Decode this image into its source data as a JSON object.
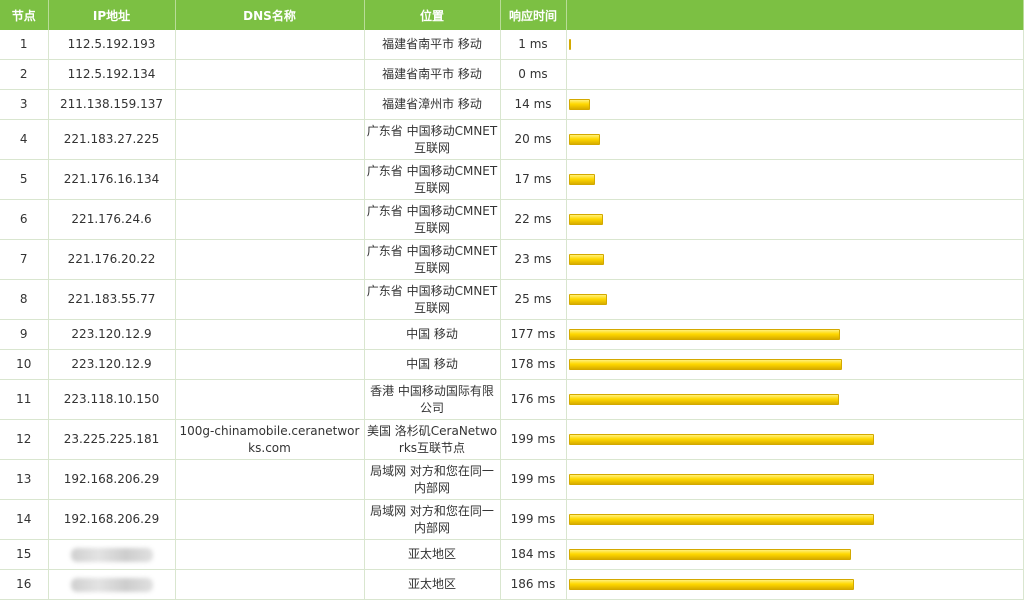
{
  "headers": [
    "节点",
    "IP地址",
    "DNS名称",
    "位置",
    "响应时间",
    ""
  ],
  "hops": [
    {
      "node": "1",
      "ip": "112.5.192.193",
      "dns": "",
      "location": "福建省南平市 移动",
      "time": "1 ms",
      "ms": 1
    },
    {
      "node": "2",
      "ip": "112.5.192.134",
      "dns": "",
      "location": "福建省南平市 移动",
      "time": "0 ms",
      "ms": 0
    },
    {
      "node": "3",
      "ip": "211.138.159.137",
      "dns": "",
      "location": "福建省漳州市 移动",
      "time": "14 ms",
      "ms": 14
    },
    {
      "node": "4",
      "ip": "221.183.27.225",
      "dns": "",
      "location": "广东省 中国移动CMNET互联网",
      "time": "20 ms",
      "ms": 20
    },
    {
      "node": "5",
      "ip": "221.176.16.134",
      "dns": "",
      "location": "广东省 中国移动CMNET互联网",
      "time": "17 ms",
      "ms": 17
    },
    {
      "node": "6",
      "ip": "221.176.24.6",
      "dns": "",
      "location": "广东省 中国移动CMNET互联网",
      "time": "22 ms",
      "ms": 22
    },
    {
      "node": "7",
      "ip": "221.176.20.22",
      "dns": "",
      "location": "广东省 中国移动CMNET互联网",
      "time": "23 ms",
      "ms": 23
    },
    {
      "node": "8",
      "ip": "221.183.55.77",
      "dns": "",
      "location": "广东省 中国移动CMNET互联网",
      "time": "25 ms",
      "ms": 25
    },
    {
      "node": "9",
      "ip": "223.120.12.9",
      "dns": "",
      "location": "中国 移动",
      "time": "177 ms",
      "ms": 177
    },
    {
      "node": "10",
      "ip": "223.120.12.9",
      "dns": "",
      "location": "中国 移动",
      "time": "178 ms",
      "ms": 178
    },
    {
      "node": "11",
      "ip": "223.118.10.150",
      "dns": "",
      "location": "香港 中国移动国际有限公司",
      "time": "176 ms",
      "ms": 176
    },
    {
      "node": "12",
      "ip": "23.225.225.181",
      "dns": "100g-chinamobile.ceranetworks.com",
      "location": "美国 洛杉矶CeraNetworks互联节点",
      "time": "199 ms",
      "ms": 199
    },
    {
      "node": "13",
      "ip": "192.168.206.29",
      "dns": "",
      "location": "局域网 对方和您在同一内部网",
      "time": "199 ms",
      "ms": 199
    },
    {
      "node": "14",
      "ip": "192.168.206.29",
      "dns": "",
      "location": "局域网 对方和您在同一内部网",
      "time": "199 ms",
      "ms": 199
    },
    {
      "node": "15",
      "ip": "",
      "dns": "",
      "location": "亚太地区",
      "time": "184 ms",
      "ms": 184,
      "ip_hidden": true
    },
    {
      "node": "16",
      "ip": "",
      "dns": "",
      "location": "亚太地区",
      "time": "186 ms",
      "ms": 186,
      "ip_hidden": true
    }
  ]
}
